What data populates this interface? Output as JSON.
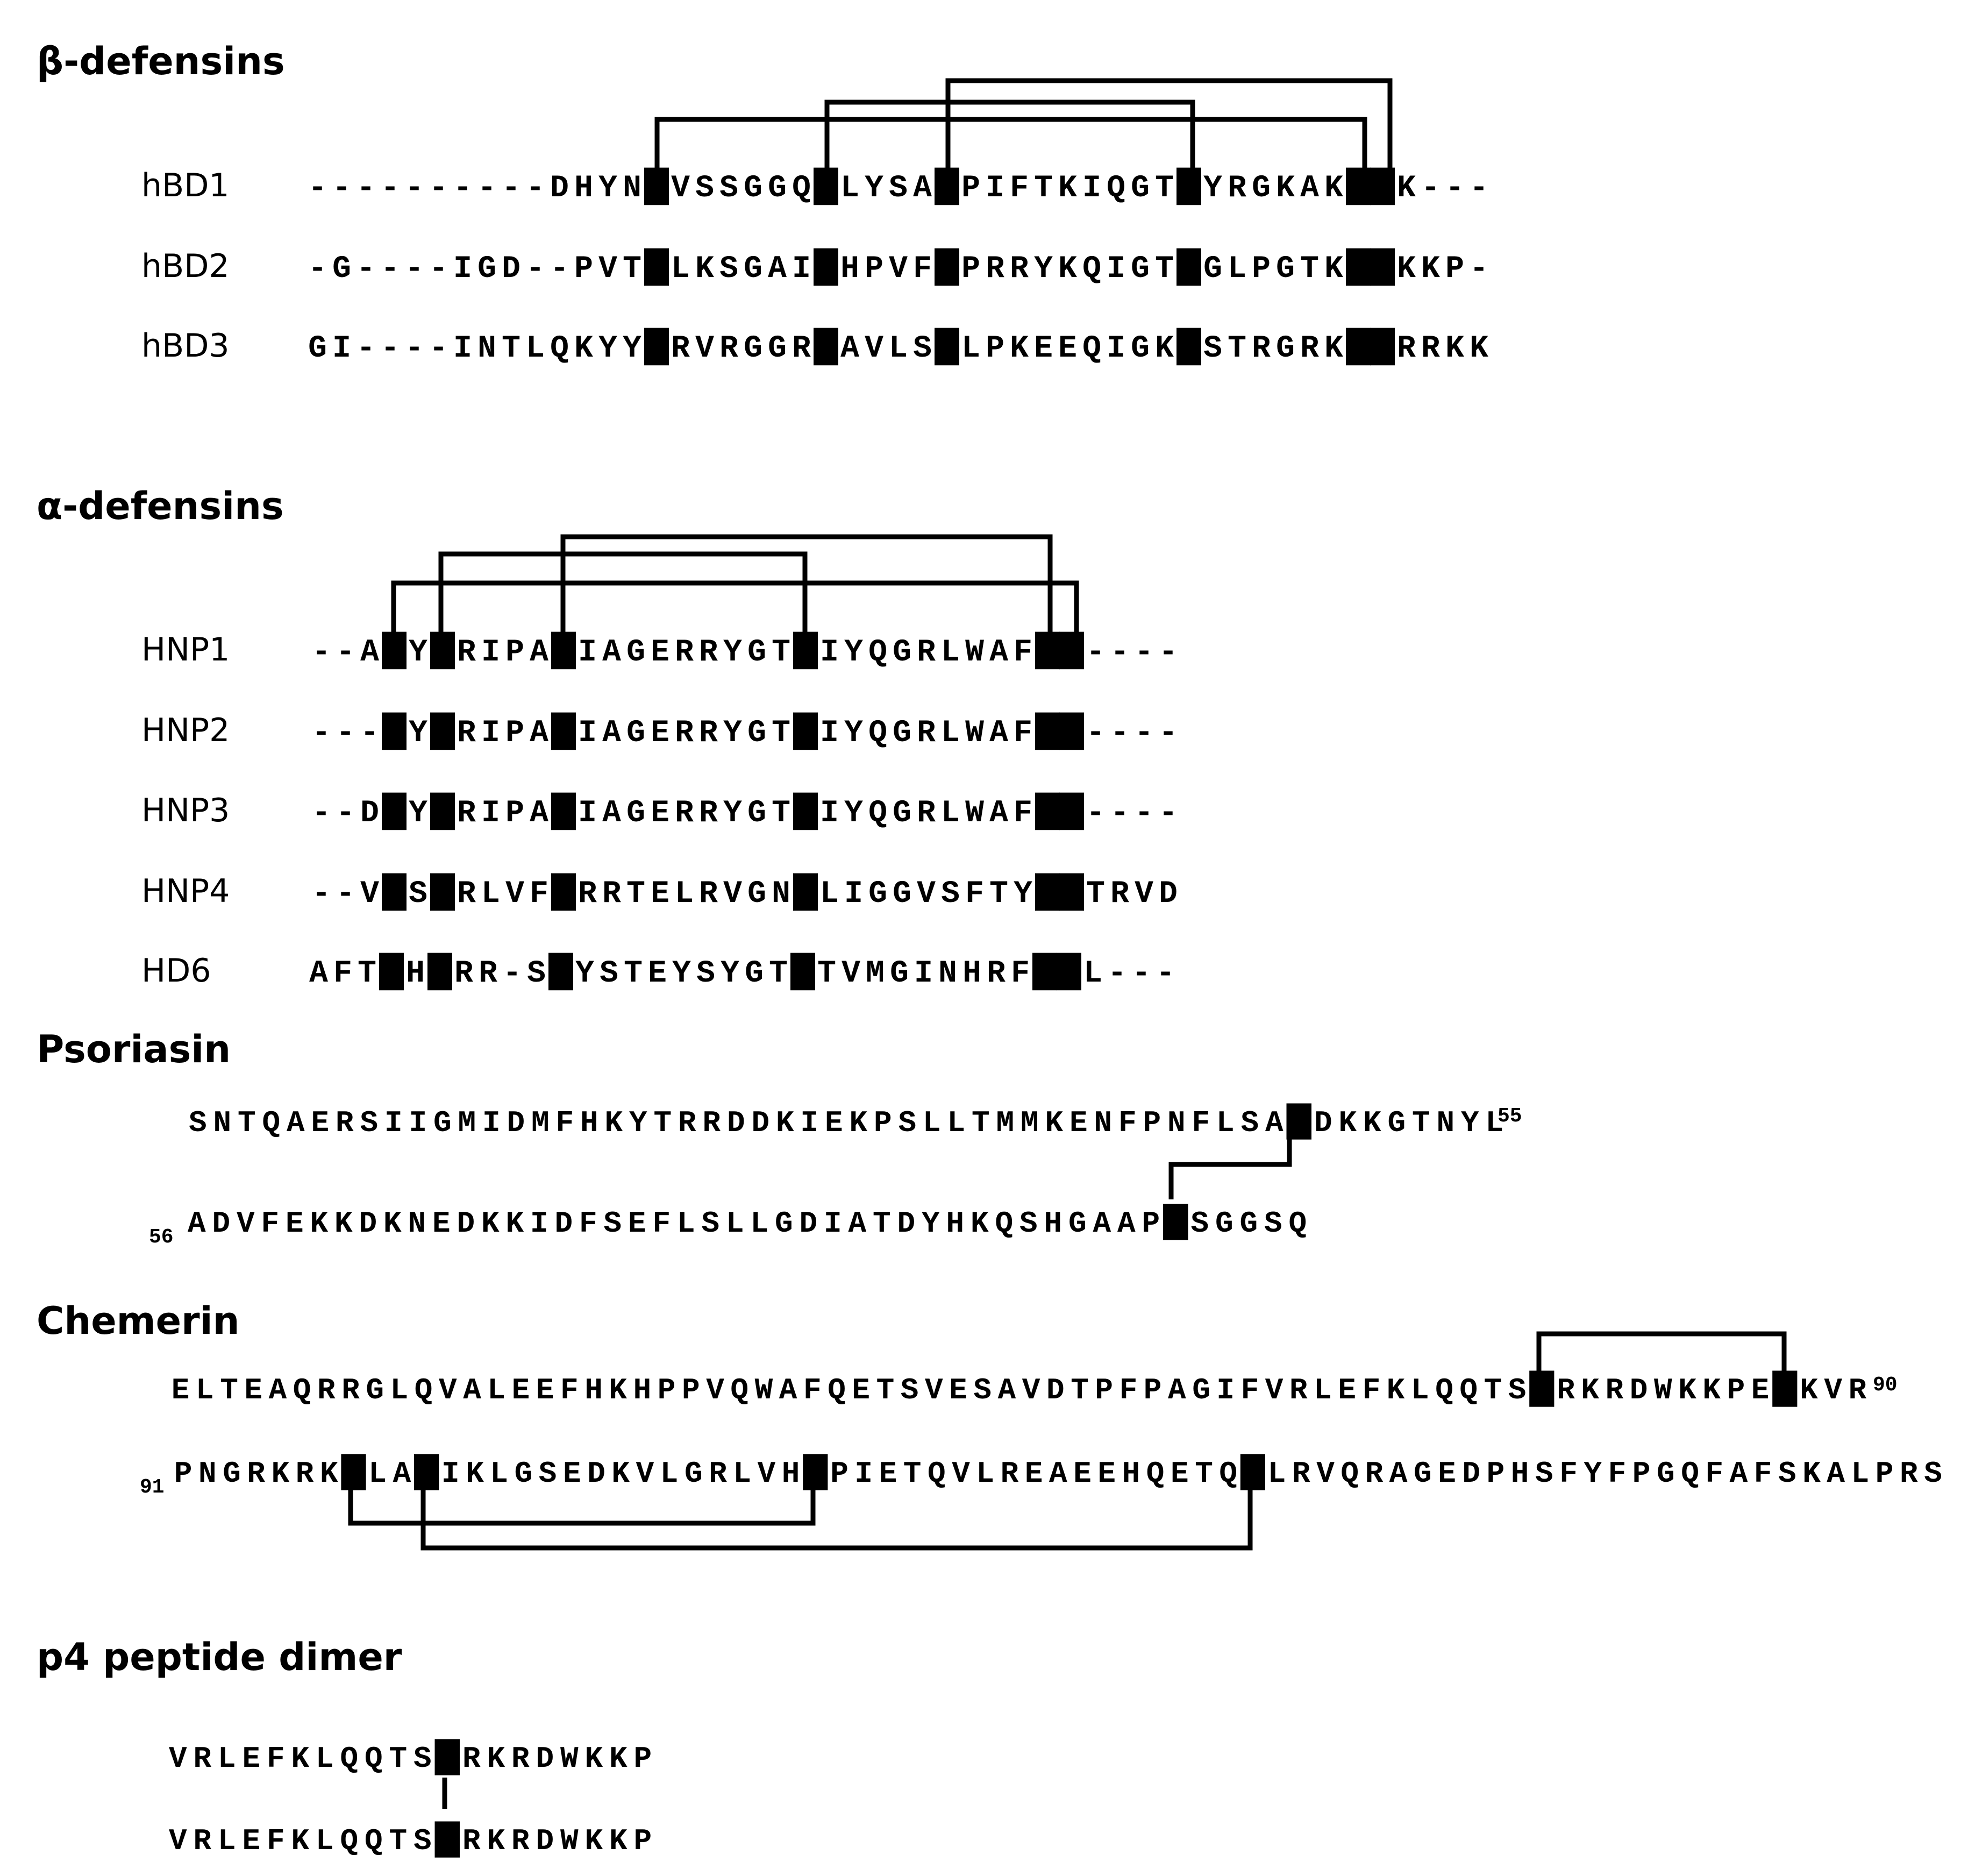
{
  "sections": {
    "beta": {
      "title": "β-defensins",
      "rows": [
        {
          "label": "hBD1",
          "seq": "----------DHYNCVSSGGQCLYSACPIFTKIQGTCYRGKAKCCK---"
        },
        {
          "label": "hBD2",
          "seq": "-G----IGD--PVTCLKSGAICHPVFCPRRYKQIGTCGLPGTKCCKKP-"
        },
        {
          "label": "hBD3",
          "seq": "GI----INTLQKYYCRVRGGRCAVLSCLPKEEQIGKCSTRGRKCCRRKK"
        }
      ]
    },
    "alpha": {
      "title": "α-defensins",
      "rows": [
        {
          "label": "HNP1",
          "seq": "--ACYCRIPACIAGERRYGTCIYQGRLWAFCC----"
        },
        {
          "label": "HNP2",
          "seq": "---CYCRIPACIAGERRYGTCIYQGRLWAFCC----"
        },
        {
          "label": "HNP3",
          "seq": "--DCYCRIPACIAGERRYGTCIYQGRLWAFCC----"
        },
        {
          "label": "HNP4",
          "seq": "--VCSCRLVFCRRTELRVGNCLIGGVSFTYCCTRVD"
        },
        {
          "label": "HD6",
          "seq": "AFTCHCRR-SCYSTEYSYGTCTVMGINHRFCCL---"
        }
      ]
    },
    "psoriasin": {
      "title": "Psoriasin",
      "line1": "SNTQAERSIIGMIDMFHKYTRRDDKIEKPSLLTMMKENFPNFLSACDKKGTNYL",
      "line1_num": "55",
      "line2_num": "56",
      "line2": "ADVFEKKDKNEDKKIDFSEFLSLLGDIATDYHKQSHGAAPCSGGSQ"
    },
    "chemerin": {
      "title": "Chemerin",
      "line1": "ELTEAQRRGLQVALEEFHKHPPVQWAFQETSVESAVDTPFPAGIFVRLEFKLQQTSCRKRDWKKPECKVR",
      "line1_num": "90",
      "line2_num": "91",
      "line2": "PNGRKRKCLACIKLGSEDKVLGRLVHCPIETQVLREAEEHQETQCLRVQRAGEDPHSFYFPGQFAFSKALPRS"
    },
    "p4": {
      "title": "p4 peptide dimer",
      "line1": "VRLEFKLQQTSCRKRDWKKP",
      "line2": "VRLEFKLQQTSCRKRDWKKP"
    }
  }
}
